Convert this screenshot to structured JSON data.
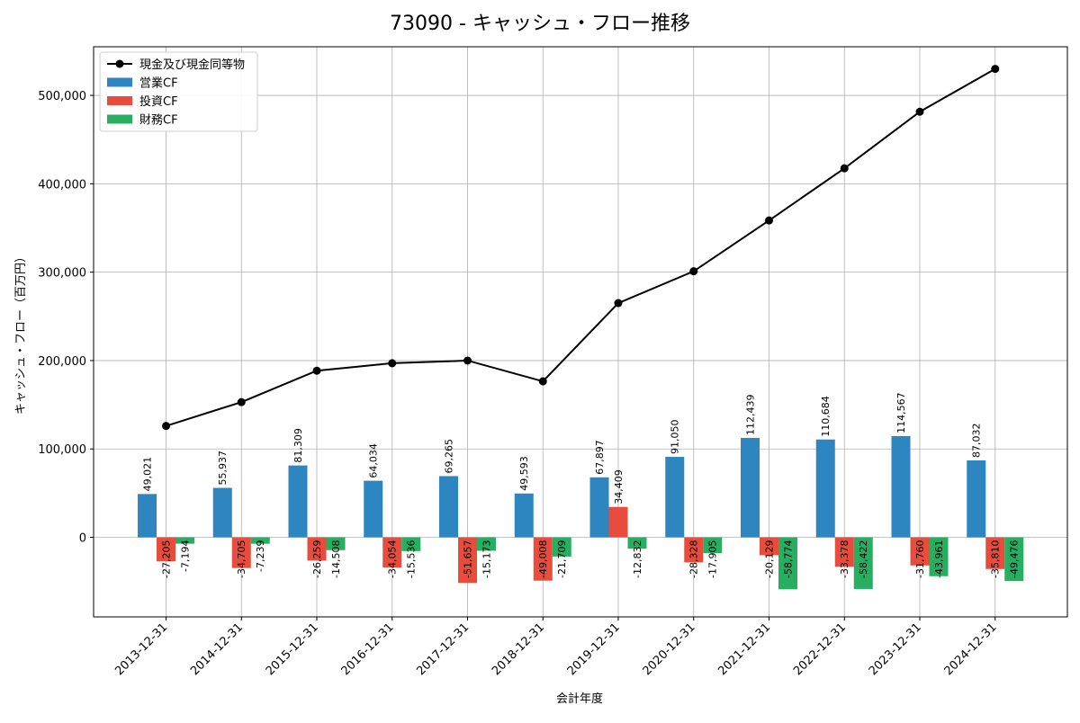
{
  "chart_data": {
    "type": "bar",
    "title": "73090 - キャッシュ・フロー推移",
    "xlabel": "会計年度",
    "ylabel": "キャッシュ・フロー（百万円）",
    "categories": [
      "2013-12-31",
      "2014-12-31",
      "2015-12-31",
      "2016-12-31",
      "2017-12-31",
      "2018-12-31",
      "2019-12-31",
      "2020-12-31",
      "2021-12-31",
      "2022-12-31",
      "2023-12-31",
      "2024-12-31"
    ],
    "ylim": [
      -90000,
      555000
    ],
    "yticks": [
      0,
      100000,
      200000,
      300000,
      400000,
      500000
    ],
    "ytick_labels": [
      "0",
      "100,000",
      "200,000",
      "300,000",
      "400,000",
      "500,000"
    ],
    "grid": true,
    "legend_position": "top-left",
    "series": [
      {
        "name": "営業CF",
        "kind": "bar",
        "color": "#2e86c1",
        "values": [
          49021,
          55937,
          81309,
          64034,
          69265,
          49593,
          67897,
          91050,
          112439,
          110684,
          114567,
          87032
        ],
        "labels": [
          "49,021",
          "55,937",
          "81,309",
          "64,034",
          "69,265",
          "49,593",
          "67,897",
          "91,050",
          "112,439",
          "110,684",
          "114,567",
          "87,032"
        ]
      },
      {
        "name": "投資CF",
        "kind": "bar",
        "color": "#e74c3c",
        "values": [
          -27205,
          -34705,
          -26259,
          -34054,
          -51657,
          -49008,
          34409,
          -28328,
          -20129,
          -33378,
          -31760,
          -35810
        ],
        "labels": [
          "-27,205",
          "-34,705",
          "-26,259",
          "-34,054",
          "-51,657",
          "-49,008",
          "34,409",
          "-28,328",
          "-20,129",
          "-33,378",
          "-31,760",
          "-35,810"
        ]
      },
      {
        "name": "財務CF",
        "kind": "bar",
        "color": "#27ae60",
        "values": [
          -7194,
          -7239,
          -14508,
          -15536,
          -15173,
          -21709,
          -12832,
          -17905,
          -58774,
          -58422,
          -43961,
          -49476
        ],
        "labels": [
          "-7,194",
          "-7,239",
          "-14,508",
          "-15,536",
          "-15,173",
          "-21,709",
          "-12,832",
          "-17,905",
          "-58,774",
          "-58,422",
          "-43,961",
          "-49,476"
        ]
      },
      {
        "name": "現金及び現金同等物",
        "kind": "line",
        "color": "#000000",
        "values": [
          126000,
          153000,
          188500,
          197000,
          200000,
          176500,
          265000,
          301000,
          358500,
          417500,
          481500,
          530000
        ]
      }
    ]
  }
}
